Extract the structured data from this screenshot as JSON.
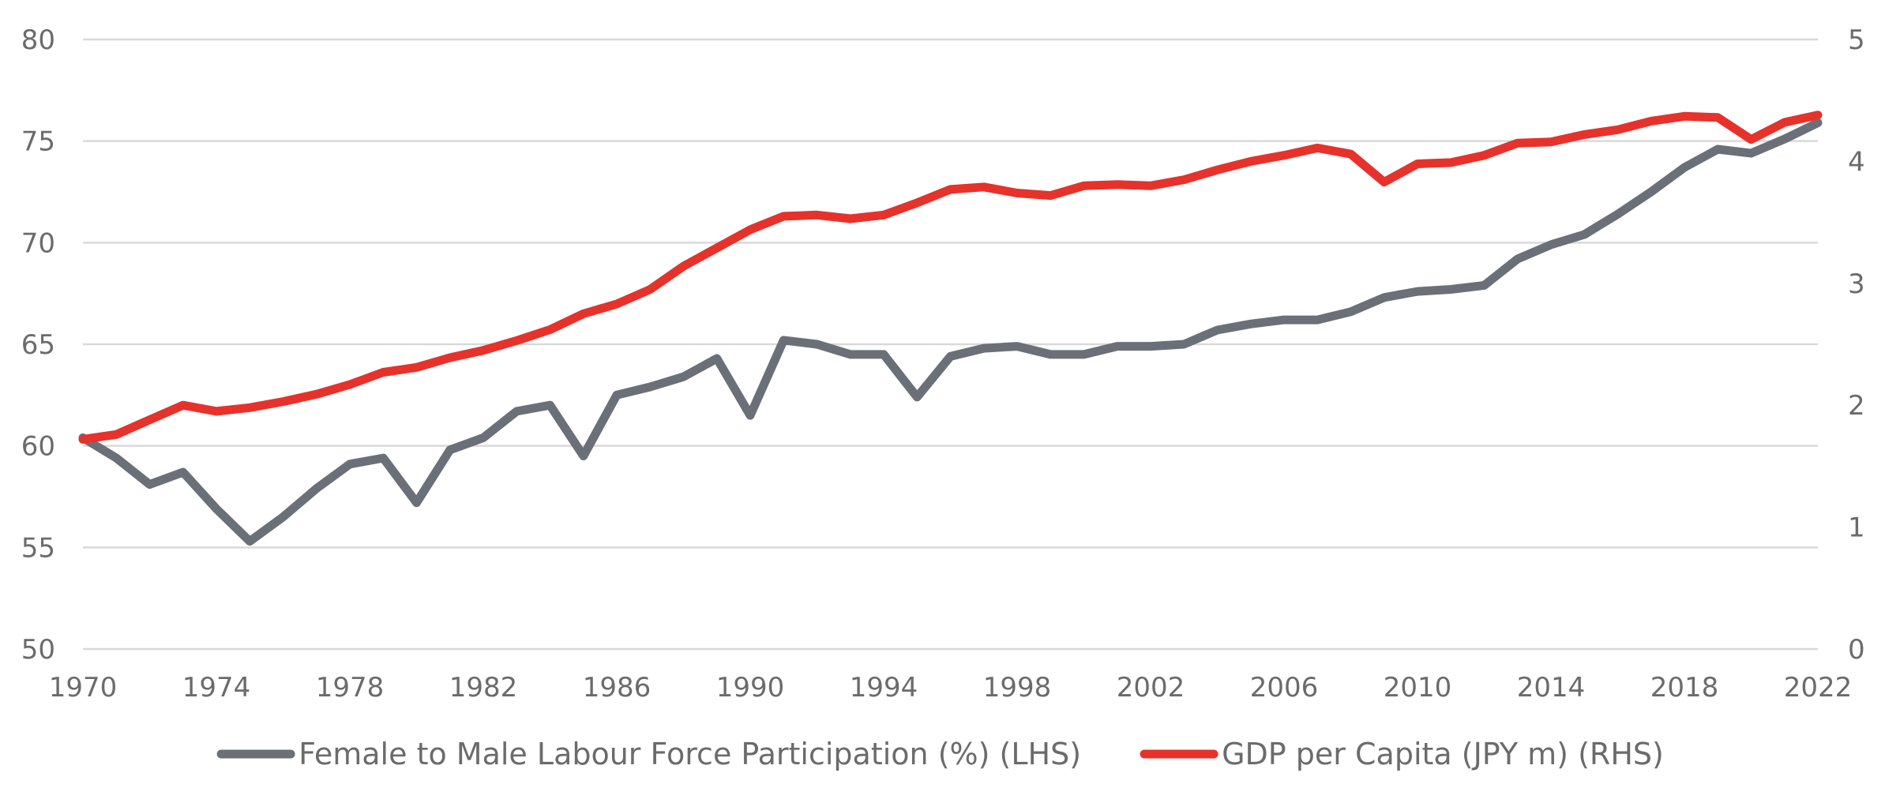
{
  "chart_data": {
    "type": "line",
    "title": "",
    "x": [
      1970,
      1971,
      1972,
      1973,
      1974,
      1975,
      1976,
      1977,
      1978,
      1979,
      1980,
      1981,
      1982,
      1983,
      1984,
      1985,
      1986,
      1987,
      1988,
      1989,
      1990,
      1991,
      1992,
      1993,
      1994,
      1995,
      1996,
      1997,
      1998,
      1999,
      2000,
      2001,
      2002,
      2003,
      2004,
      2005,
      2006,
      2007,
      2008,
      2009,
      2010,
      2011,
      2012,
      2013,
      2014,
      2015,
      2016,
      2017,
      2018,
      2019,
      2020,
      2021,
      2022
    ],
    "x_tick_labels": [
      "1970",
      "1974",
      "1978",
      "1982",
      "1986",
      "1990",
      "1994",
      "1998",
      "2002",
      "2006",
      "2010",
      "2014",
      "2018",
      "2022"
    ],
    "xlim": [
      1970,
      2022
    ],
    "y_left": {
      "ylim": [
        50,
        80
      ],
      "ticks": [
        "50",
        "55",
        "60",
        "65",
        "70",
        "75",
        "80"
      ]
    },
    "y_right": {
      "ylim": [
        0,
        5
      ],
      "ticks": [
        "0",
        "1",
        "2",
        "3",
        "4",
        "5"
      ]
    },
    "grid": true,
    "legend_position": "bottom-center",
    "series": [
      {
        "name": "Female to Male Labour Force Participation (%) (LHS)",
        "axis": "left",
        "color": "#6b7078",
        "values": [
          60.4,
          59.4,
          58.1,
          58.7,
          56.9,
          55.3,
          56.5,
          57.9,
          59.1,
          59.4,
          57.2,
          59.8,
          60.4,
          61.7,
          62.0,
          59.5,
          62.5,
          62.9,
          63.4,
          64.3,
          61.5,
          65.2,
          65.0,
          64.5,
          64.5,
          62.4,
          64.4,
          64.8,
          64.9,
          64.5,
          64.5,
          64.9,
          64.9,
          65.0,
          65.7,
          66.0,
          66.2,
          66.2,
          66.6,
          67.3,
          67.6,
          67.7,
          67.9,
          69.2,
          69.9,
          70.4,
          71.4,
          72.5,
          73.7,
          74.6,
          74.4,
          75.1,
          75.9
        ]
      },
      {
        "name": "GDP per Capita (JPY m) (RHS)",
        "axis": "right",
        "color": "#e6322b",
        "values": [
          1.72,
          1.76,
          1.88,
          2.0,
          1.95,
          1.98,
          2.03,
          2.09,
          2.17,
          2.27,
          2.31,
          2.39,
          2.45,
          2.53,
          2.62,
          2.75,
          2.83,
          2.95,
          3.14,
          3.29,
          3.44,
          3.55,
          3.56,
          3.53,
          3.56,
          3.66,
          3.77,
          3.79,
          3.74,
          3.72,
          3.8,
          3.81,
          3.8,
          3.85,
          3.93,
          4.0,
          4.05,
          4.11,
          4.06,
          3.83,
          3.98,
          3.99,
          4.05,
          4.15,
          4.16,
          4.22,
          4.26,
          4.33,
          4.37,
          4.36,
          4.18,
          4.32,
          4.38
        ]
      }
    ]
  }
}
